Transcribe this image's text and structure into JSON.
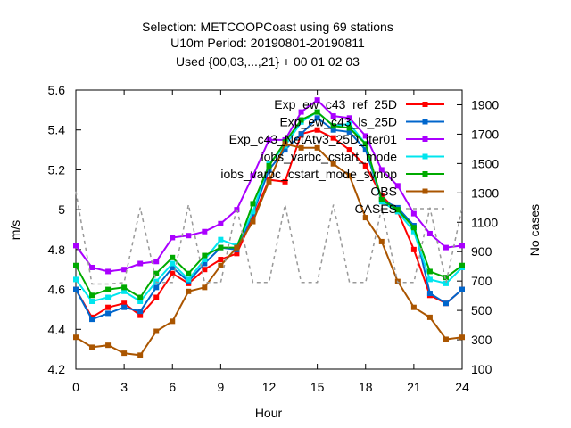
{
  "chart_data": {
    "type": "line",
    "title_lines": [
      "Selection: METCOOPCoast using    69 stations",
      "U10m   Period: 20190801-20190811",
      "Used {00,03,...,21} + 00 01 02 03"
    ],
    "xlabel": "Hour",
    "ylabel": "m/s",
    "y2label": "No cases",
    "xlim": [
      0,
      24
    ],
    "ylim": [
      4.2,
      5.6
    ],
    "y2lim": [
      100,
      2000
    ],
    "xticks": [
      "0",
      "3",
      "6",
      "9",
      "12",
      "15",
      "18",
      "21",
      "24"
    ],
    "yticks": [
      "4.2",
      "4.4",
      "4.6",
      "4.8",
      "5",
      "5.2",
      "5.4",
      "5.6"
    ],
    "y2ticks": [
      "100",
      "300",
      "500",
      "700",
      "900",
      "1100",
      "1300",
      "1500",
      "1700",
      "1900"
    ],
    "grid": false,
    "legend_position": "top-right",
    "x": [
      0,
      1,
      2,
      3,
      4,
      5,
      6,
      7,
      8,
      9,
      10,
      11,
      12,
      13,
      14,
      15,
      16,
      17,
      18,
      19,
      20,
      21,
      22,
      23,
      24
    ],
    "series": [
      {
        "name": "Exp_ew_c43_ref_25D",
        "color": "#ff0000",
        "marker": "square",
        "values": [
          4.6,
          4.46,
          4.51,
          4.53,
          4.47,
          4.56,
          4.68,
          4.63,
          4.7,
          4.75,
          4.78,
          4.96,
          5.15,
          5.14,
          5.38,
          5.4,
          5.36,
          5.3,
          5.22,
          5.07,
          4.99,
          4.8,
          4.57,
          4.53,
          4.6
        ]
      },
      {
        "name": "Exp_ew_c43_ls_25D",
        "color": "#0066cc",
        "marker": "square",
        "values": [
          4.6,
          4.45,
          4.48,
          4.51,
          4.49,
          4.61,
          4.71,
          4.64,
          4.73,
          4.81,
          4.8,
          4.98,
          5.2,
          5.3,
          5.38,
          5.46,
          5.4,
          5.39,
          5.3,
          5.05,
          5.01,
          4.92,
          4.58,
          4.53,
          4.6
        ]
      },
      {
        "name": "Exp_c43_NetAtv3_25D_iter01",
        "color": "#aa00ff",
        "marker": "square",
        "values": [
          4.82,
          4.71,
          4.69,
          4.7,
          4.73,
          4.74,
          4.86,
          4.87,
          4.89,
          4.93,
          5.0,
          5.17,
          5.35,
          5.35,
          5.49,
          5.55,
          5.47,
          5.46,
          5.37,
          5.2,
          5.12,
          4.98,
          4.88,
          4.81,
          4.82
        ]
      },
      {
        "name": "iobs_varbc_cstart_mode",
        "color": "#00e5ee",
        "marker": "square",
        "values": [
          4.65,
          4.54,
          4.56,
          4.59,
          4.54,
          4.64,
          4.73,
          4.65,
          4.75,
          4.85,
          4.82,
          4.99,
          5.23,
          5.32,
          5.44,
          5.49,
          5.42,
          5.43,
          5.33,
          5.04,
          4.99,
          4.89,
          4.65,
          4.63,
          4.71
        ]
      },
      {
        "name": "iobs_varbc_cstart_mode_synop",
        "color": "#00aa00",
        "marker": "square",
        "values": [
          4.72,
          4.57,
          4.6,
          4.61,
          4.56,
          4.68,
          4.76,
          4.68,
          4.77,
          4.81,
          4.81,
          5.03,
          5.22,
          5.34,
          5.45,
          5.49,
          5.42,
          5.41,
          5.33,
          5.05,
          5.0,
          4.91,
          4.69,
          4.66,
          4.72
        ]
      },
      {
        "name": "OBS",
        "color": "#aa5500",
        "marker": "square",
        "values": [
          4.36,
          4.31,
          4.32,
          4.28,
          4.27,
          4.39,
          4.44,
          4.59,
          4.61,
          4.72,
          4.81,
          4.94,
          5.14,
          5.33,
          5.31,
          5.31,
          5.23,
          5.17,
          4.96,
          4.84,
          4.64,
          4.51,
          4.46,
          4.35,
          4.36
        ]
      },
      {
        "name": "CASES",
        "color": "#999999",
        "marker": "none",
        "dashed": true,
        "axis": "y2",
        "values": [
          1310,
          680,
          680,
          690,
          1200,
          690,
          690,
          1220,
          690,
          690,
          1200,
          690,
          690,
          1220,
          690,
          690,
          1220,
          690,
          690,
          1200,
          690,
          690,
          1200,
          690,
          1200
        ]
      }
    ]
  }
}
